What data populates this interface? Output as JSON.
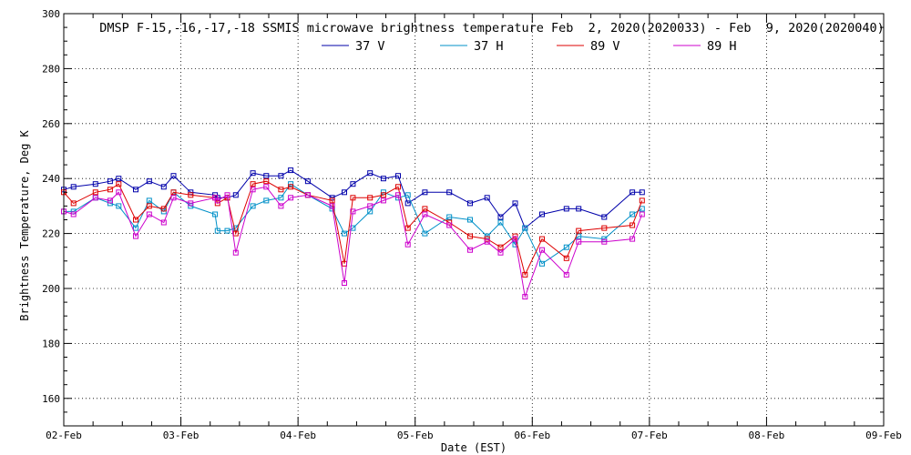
{
  "chart_data": {
    "type": "line",
    "title": "DMSP F-15,-16,-17,-18 SSMIS microwave brightness temperature Feb  2, 2020(2020033) - Feb  9, 2020(2020040)",
    "xlabel": "Date (EST)",
    "ylabel": "Brightness Temperature, Deg K",
    "xlim": [
      "2020-02-02T00:00",
      "2020-02-09T00:00"
    ],
    "ylim": [
      150,
      300
    ],
    "yticks": [
      160,
      180,
      200,
      220,
      240,
      260,
      280,
      300
    ],
    "xtick_labels": [
      "02-Feb",
      "03-Feb",
      "04-Feb",
      "05-Feb",
      "06-Feb",
      "07-Feb",
      "08-Feb",
      "09-Feb"
    ],
    "grid": true,
    "legend": "top-center",
    "series": [
      {
        "name": "37 V",
        "color": "#0000aa",
        "x": [
          "2020-02-02T00:00",
          "2020-02-02T02:00",
          "2020-02-02T06:30",
          "2020-02-02T09:30",
          "2020-02-02T11:15",
          "2020-02-02T14:45",
          "2020-02-02T17:30",
          "2020-02-02T20:30",
          "2020-02-02T22:30",
          "2020-02-03T02:00",
          "2020-02-03T07:00",
          "2020-02-03T07:30",
          "2020-02-03T09:30",
          "2020-02-03T11:15",
          "2020-02-03T14:45",
          "2020-02-03T17:30",
          "2020-02-03T20:30",
          "2020-02-03T22:30",
          "2020-02-04T02:00",
          "2020-02-04T07:00",
          "2020-02-04T09:30",
          "2020-02-04T11:15",
          "2020-02-04T14:45",
          "2020-02-04T17:30",
          "2020-02-04T20:30",
          "2020-02-04T22:30",
          "2020-02-05T02:00",
          "2020-02-05T07:00",
          "2020-02-05T11:15",
          "2020-02-05T14:45",
          "2020-02-05T17:30",
          "2020-02-05T20:30",
          "2020-02-05T22:30",
          "2020-02-06T02:00",
          "2020-02-06T07:00",
          "2020-02-06T09:30",
          "2020-02-06T14:45",
          "2020-02-06T20:30",
          "2020-02-06T22:30"
        ],
        "values": [
          236,
          237,
          238,
          239,
          240,
          236,
          239,
          237,
          241,
          235,
          234,
          233,
          233,
          234,
          242,
          241,
          241,
          243,
          239,
          233,
          235,
          238,
          242,
          240,
          241,
          231,
          235,
          235,
          231,
          233,
          226,
          231,
          222,
          227,
          229,
          229,
          226,
          235,
          235
        ]
      },
      {
        "name": "37 H",
        "color": "#0090c8",
        "x": [
          "2020-02-02T00:00",
          "2020-02-02T02:00",
          "2020-02-02T06:30",
          "2020-02-02T09:30",
          "2020-02-02T11:15",
          "2020-02-02T14:45",
          "2020-02-02T17:30",
          "2020-02-02T20:30",
          "2020-02-02T22:30",
          "2020-02-03T02:00",
          "2020-02-03T07:00",
          "2020-02-03T07:30",
          "2020-02-03T09:30",
          "2020-02-03T11:15",
          "2020-02-03T14:45",
          "2020-02-03T17:30",
          "2020-02-03T20:30",
          "2020-02-03T22:30",
          "2020-02-04T02:00",
          "2020-02-04T07:00",
          "2020-02-04T09:30",
          "2020-02-04T11:15",
          "2020-02-04T14:45",
          "2020-02-04T17:30",
          "2020-02-04T20:30",
          "2020-02-04T22:30",
          "2020-02-05T02:00",
          "2020-02-05T07:00",
          "2020-02-05T11:15",
          "2020-02-05T14:45",
          "2020-02-05T17:30",
          "2020-02-05T20:30",
          "2020-02-05T22:30",
          "2020-02-06T02:00",
          "2020-02-06T07:00",
          "2020-02-06T09:30",
          "2020-02-06T14:45",
          "2020-02-06T20:30",
          "2020-02-06T22:30"
        ],
        "values": [
          228,
          228,
          233,
          231,
          230,
          222,
          232,
          228,
          235,
          230,
          227,
          221,
          221,
          222,
          230,
          232,
          233,
          238,
          234,
          229,
          220,
          222,
          228,
          235,
          233,
          234,
          220,
          226,
          225,
          219,
          224,
          216,
          222,
          209,
          215,
          219,
          218,
          227,
          229
        ]
      },
      {
        "name": "89 V",
        "color": "#dd0000",
        "x": [
          "2020-02-02T00:00",
          "2020-02-02T02:00",
          "2020-02-02T06:30",
          "2020-02-02T09:30",
          "2020-02-02T11:15",
          "2020-02-02T14:45",
          "2020-02-02T17:30",
          "2020-02-02T20:30",
          "2020-02-02T22:30",
          "2020-02-03T02:00",
          "2020-02-03T07:00",
          "2020-02-03T07:30",
          "2020-02-03T09:30",
          "2020-02-03T11:15",
          "2020-02-03T14:45",
          "2020-02-03T17:30",
          "2020-02-03T20:30",
          "2020-02-03T22:30",
          "2020-02-04T02:00",
          "2020-02-04T07:00",
          "2020-02-04T09:30",
          "2020-02-04T11:15",
          "2020-02-04T14:45",
          "2020-02-04T17:30",
          "2020-02-04T20:30",
          "2020-02-04T22:30",
          "2020-02-05T02:00",
          "2020-02-05T07:00",
          "2020-02-05T11:15",
          "2020-02-05T14:45",
          "2020-02-05T17:30",
          "2020-02-05T20:30",
          "2020-02-05T22:30",
          "2020-02-06T02:00",
          "2020-02-06T07:00",
          "2020-02-06T09:30",
          "2020-02-06T14:45",
          "2020-02-06T20:30",
          "2020-02-06T22:30"
        ],
        "values": [
          235,
          231,
          235,
          236,
          238,
          225,
          230,
          229,
          235,
          234,
          233,
          231,
          233,
          220,
          238,
          239,
          236,
          237,
          234,
          232,
          209,
          233,
          233,
          234,
          237,
          222,
          229,
          224,
          219,
          218,
          215,
          219,
          205,
          218,
          211,
          221,
          222,
          223,
          232
        ]
      },
      {
        "name": "89 H",
        "color": "#cc00cc",
        "x": [
          "2020-02-02T00:00",
          "2020-02-02T02:00",
          "2020-02-02T06:30",
          "2020-02-02T09:30",
          "2020-02-02T11:15",
          "2020-02-02T14:45",
          "2020-02-02T17:30",
          "2020-02-02T20:30",
          "2020-02-02T22:30",
          "2020-02-03T02:00",
          "2020-02-03T07:00",
          "2020-02-03T07:30",
          "2020-02-03T09:30",
          "2020-02-03T11:15",
          "2020-02-03T14:45",
          "2020-02-03T17:30",
          "2020-02-03T20:30",
          "2020-02-03T22:30",
          "2020-02-04T02:00",
          "2020-02-04T07:00",
          "2020-02-04T09:30",
          "2020-02-04T11:15",
          "2020-02-04T14:45",
          "2020-02-04T17:30",
          "2020-02-04T20:30",
          "2020-02-04T22:30",
          "2020-02-05T02:00",
          "2020-02-05T07:00",
          "2020-02-05T11:15",
          "2020-02-05T14:45",
          "2020-02-05T17:30",
          "2020-02-05T20:30",
          "2020-02-05T22:30",
          "2020-02-06T02:00",
          "2020-02-06T07:00",
          "2020-02-06T09:30",
          "2020-02-06T14:45",
          "2020-02-06T20:30",
          "2020-02-06T22:30"
        ],
        "values": [
          228,
          227,
          233,
          232,
          235,
          219,
          227,
          224,
          233,
          231,
          233,
          232,
          234,
          213,
          236,
          237,
          230,
          233,
          234,
          230,
          202,
          228,
          230,
          232,
          234,
          216,
          227,
          223,
          214,
          217,
          213,
          218,
          197,
          214,
          205,
          217,
          217,
          218,
          227
        ]
      }
    ]
  }
}
